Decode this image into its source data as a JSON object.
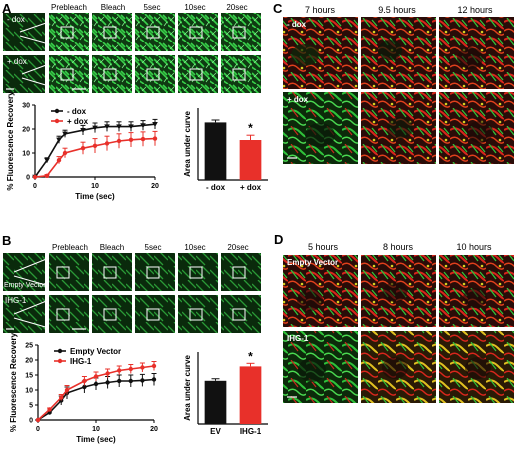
{
  "panels": {
    "A": {
      "label": "A",
      "frame_labels": [
        "Prebleach",
        "Bleach",
        "5sec",
        "10sec",
        "20sec"
      ],
      "row_labels": [
        "- dox",
        "+ dox"
      ]
    },
    "B": {
      "label": "B",
      "frame_labels": [
        "Prebleach",
        "Bleach",
        "5sec",
        "10sec",
        "20sec"
      ],
      "row_labels": [
        "Empty Vector",
        "IHG-1"
      ]
    },
    "C": {
      "label": "C",
      "time_labels": [
        "7 hours",
        "9.5 hours",
        "12 hours"
      ],
      "row_labels": [
        "- dox",
        "+ dox"
      ]
    },
    "D": {
      "label": "D",
      "time_labels": [
        "5 hours",
        "8 hours",
        "10 hours"
      ],
      "row_labels": [
        "Empty Vector",
        "IHG-1"
      ]
    }
  },
  "colors": {
    "black_series": "#111111",
    "red_series": "#e8302a",
    "green_channel": "#2fc23a",
    "red_channel": "#d8261c"
  },
  "chart_data": [
    {
      "id": "A-line",
      "type": "line",
      "xlabel": "Time (sec)",
      "ylabel": "% Fluorescence Recovery",
      "xlim": [
        0,
        20
      ],
      "ylim": [
        0,
        30
      ],
      "xticks": [
        0,
        10,
        20
      ],
      "yticks": [
        0,
        10,
        20,
        30
      ],
      "legend": "top-left",
      "series": [
        {
          "name": "- dox",
          "color": "#111111",
          "marker": "triangle",
          "x": [
            0,
            2,
            4,
            5,
            8,
            10,
            12,
            14,
            16,
            18,
            20
          ],
          "y": [
            0,
            7,
            15.5,
            18,
            19.5,
            20.5,
            21,
            21,
            21,
            21.5,
            22
          ],
          "err": [
            0,
            1,
            1.5,
            1.5,
            2,
            2,
            2,
            2,
            2,
            2,
            2
          ]
        },
        {
          "name": "+ dox",
          "color": "#e8302a",
          "marker": "circle",
          "x": [
            0,
            2,
            4,
            5,
            8,
            10,
            12,
            14,
            16,
            18,
            20
          ],
          "y": [
            0,
            0.5,
            7,
            10,
            12,
            13,
            14,
            15,
            15.5,
            15.8,
            16
          ],
          "err": [
            0,
            0.5,
            1.5,
            2,
            2.5,
            3,
            3,
            3,
            3,
            3,
            3
          ]
        }
      ]
    },
    {
      "id": "A-bar",
      "type": "bar",
      "ylabel": "Area under curve",
      "categories": [
        "- dox",
        "+ dox"
      ],
      "values": [
        360,
        250
      ],
      "err": [
        15,
        30
      ],
      "colors": [
        "#111111",
        "#e8302a"
      ],
      "ylim": [
        0,
        450
      ],
      "annotation": "*"
    },
    {
      "id": "B-line",
      "type": "line",
      "xlabel": "Time (sec)",
      "ylabel": "% Fluorescence Recovery",
      "xlim": [
        0,
        20
      ],
      "ylim": [
        0,
        25
      ],
      "xticks": [
        0,
        10,
        20
      ],
      "yticks": [
        0,
        5,
        10,
        15,
        20,
        25
      ],
      "legend": "top-left",
      "series": [
        {
          "name": "Empty Vector",
          "color": "#111111",
          "marker": "circle",
          "x": [
            0,
            2,
            4,
            5,
            8,
            10,
            12,
            14,
            16,
            18,
            20
          ],
          "y": [
            0,
            2.5,
            6.5,
            9,
            11,
            12,
            12.5,
            13,
            13,
            13.2,
            13.5
          ],
          "err": [
            0,
            0.5,
            1.5,
            2,
            2,
            2,
            2,
            2,
            2,
            2,
            2
          ]
        },
        {
          "name": "IHG-1",
          "color": "#e8302a",
          "marker": "circle",
          "x": [
            0,
            2,
            4,
            5,
            8,
            10,
            12,
            14,
            16,
            18,
            20
          ],
          "y": [
            0,
            3.5,
            7.5,
            10,
            13,
            14.5,
            15.5,
            16.5,
            17,
            17.5,
            18
          ],
          "err": [
            0,
            0.5,
            1,
            1.5,
            1.5,
            1.5,
            1.5,
            1.5,
            1.5,
            1.5,
            1.5
          ]
        }
      ]
    },
    {
      "id": "B-bar",
      "type": "bar",
      "ylabel": "Area under curve",
      "categories": [
        "EV",
        "IHG-1"
      ],
      "values": [
        210,
        280
      ],
      "err": [
        10,
        15
      ],
      "colors": [
        "#111111",
        "#e8302a"
      ],
      "ylim": [
        0,
        350
      ],
      "annotation": "*"
    }
  ]
}
